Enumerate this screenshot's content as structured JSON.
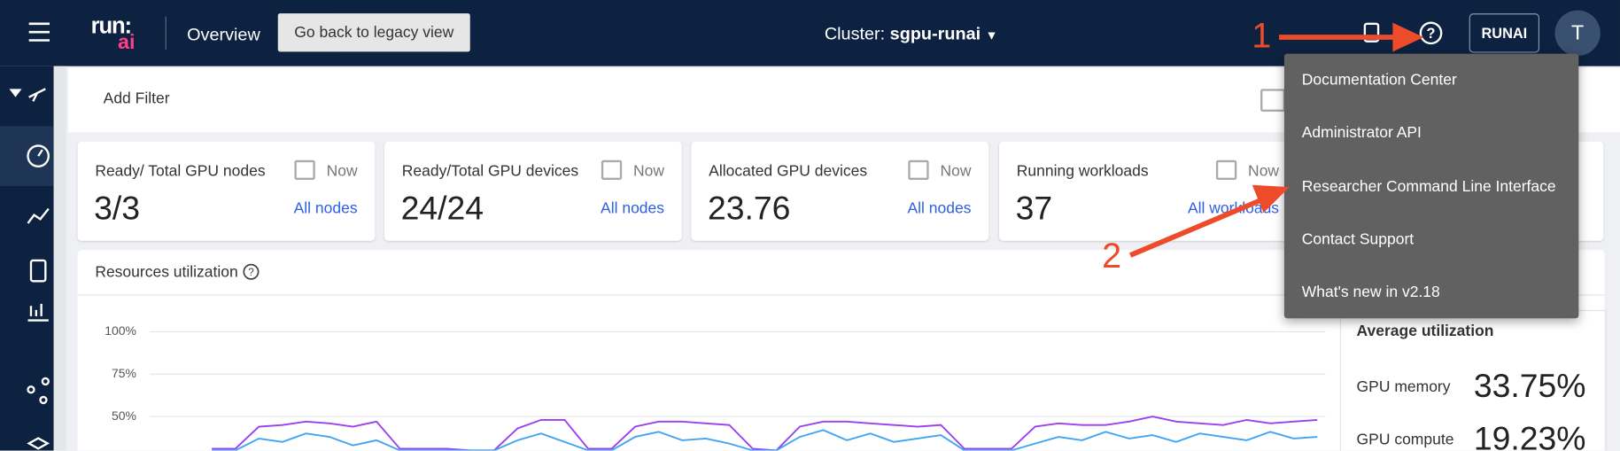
{
  "top_bar": {
    "logo_top": "run:",
    "logo_bottom": "ai",
    "page_title": "Overview",
    "legacy_button": "Go back to legacy view",
    "cluster_label": "Cluster:",
    "cluster_name": "sgpu-runai",
    "org_button": "RUNAI",
    "avatar": "T"
  },
  "filter_bar": {
    "add_filter": "Add Filter"
  },
  "cards": [
    {
      "title": "Ready/ Total GPU nodes",
      "time": "Now",
      "value": "3/3",
      "link": "All nodes"
    },
    {
      "title": "Ready/Total GPU devices",
      "time": "Now",
      "value": "24/24",
      "link": "All nodes"
    },
    {
      "title": "Allocated GPU devices",
      "time": "Now",
      "value": "23.76",
      "link": "All nodes"
    },
    {
      "title": "Running workloads",
      "time": "Now",
      "value": "37",
      "link": "All workloads"
    }
  ],
  "resources_panel": {
    "title": "Resources utilization",
    "chart": {
      "type": "line",
      "ylim": [
        0,
        100
      ],
      "yticks": [
        {
          "value": 100,
          "label": "100%"
        },
        {
          "value": 75,
          "label": "75%"
        },
        {
          "value": 50,
          "label": "50%"
        }
      ],
      "grid": true,
      "series": [
        {
          "color": "#9b3ff0",
          "values": [
            31,
            31,
            44,
            45,
            47,
            46,
            44,
            47,
            31,
            31,
            31,
            30,
            30,
            43,
            48,
            48,
            31,
            31,
            44,
            47,
            47,
            46,
            45,
            31,
            30,
            44,
            47,
            47,
            46,
            45,
            44,
            45,
            31,
            31,
            31,
            44,
            46,
            45,
            45,
            47,
            50,
            47,
            46,
            45,
            48,
            46,
            47,
            48
          ]
        },
        {
          "color": "#3fa4f5",
          "values": [
            30,
            30,
            37,
            35,
            40,
            38,
            33,
            36,
            30,
            30,
            30,
            30,
            30,
            36,
            40,
            35,
            30,
            30,
            38,
            41,
            36,
            37,
            34,
            30,
            30,
            38,
            42,
            36,
            40,
            35,
            37,
            39,
            30,
            30,
            30,
            34,
            38,
            36,
            41,
            37,
            39,
            35,
            40,
            38,
            36,
            41,
            37,
            38
          ]
        }
      ]
    },
    "average": {
      "title": "Average utilization",
      "rows": [
        {
          "label": "GPU memory",
          "value": "33.75%"
        },
        {
          "label": "GPU compute",
          "value": "19.23%"
        }
      ]
    }
  },
  "help_menu": {
    "items": [
      "Documentation Center",
      "Administrator API",
      "Researcher Command Line Interface",
      "Contact Support",
      "What's new in v2.18"
    ]
  },
  "annotations": [
    "1",
    "2"
  ]
}
